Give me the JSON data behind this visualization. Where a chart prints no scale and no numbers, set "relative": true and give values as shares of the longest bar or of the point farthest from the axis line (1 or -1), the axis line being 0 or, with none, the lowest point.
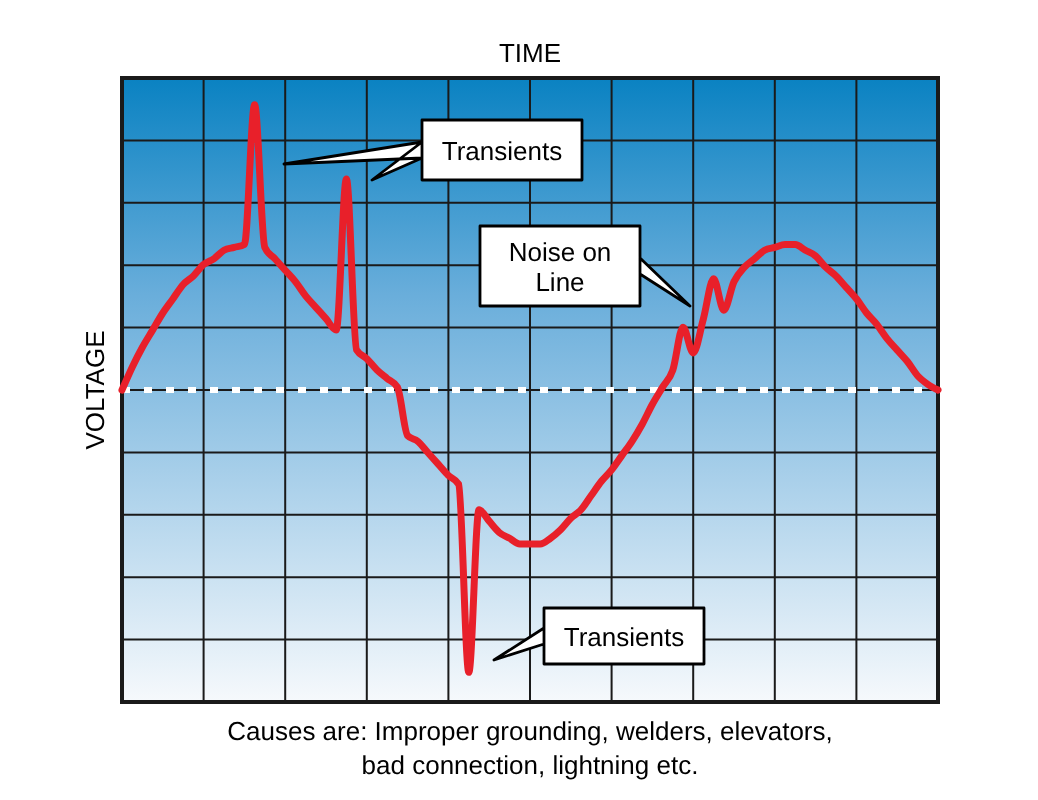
{
  "chart_data": {
    "type": "line",
    "xlabel": "TIME",
    "ylabel": "VOLTAGE",
    "relative": true,
    "grid": true,
    "marker": "none",
    "line_style": "solid",
    "categories": [
      null,
      null,
      null,
      null,
      null,
      null,
      null,
      null,
      null,
      null,
      null,
      null,
      null,
      null,
      null,
      null,
      null,
      null,
      null,
      null,
      null,
      null,
      null,
      null,
      null,
      null,
      null,
      null,
      null,
      null,
      null,
      null,
      null,
      null,
      null,
      null,
      null,
      null,
      null,
      null,
      null,
      null,
      null,
      null,
      null,
      null,
      null,
      null,
      null,
      null,
      null,
      null,
      null,
      null,
      null,
      null,
      null,
      null,
      null,
      null,
      null,
      null,
      null,
      null,
      null,
      null,
      null,
      null,
      null,
      null,
      null,
      null,
      null,
      null,
      null,
      null,
      null,
      null,
      null,
      null,
      null
    ],
    "series": [
      {
        "color": "#e8202a",
        "values": [
          0,
          0.08,
          0.15,
          0.21,
          0.27,
          0.32,
          0.37,
          0.4,
          0.44,
          0.46,
          0.49,
          0.5,
          0.51,
          1,
          0.5,
          0.46,
          0.42,
          0.38,
          0.33,
          0.29,
          0.25,
          0.21,
          0.74,
          0.14,
          0.11,
          0.07,
          0.04,
          0.01,
          -0.16,
          -0.18,
          -0.22,
          -0.26,
          -0.3,
          -0.33,
          -0.99,
          -0.42,
          -0.46,
          -0.5,
          -0.52,
          -0.54,
          -0.54,
          -0.54,
          -0.52,
          -0.49,
          -0.45,
          -0.42,
          -0.37,
          -0.32,
          -0.28,
          -0.23,
          -0.18,
          -0.12,
          -0.05,
          0.01,
          0.07,
          0.22,
          0.13,
          0.25,
          0.39,
          0.28,
          0.38,
          0.43,
          0.46,
          0.49,
          0.5,
          0.51,
          0.51,
          0.49,
          0.47,
          0.43,
          0.4,
          0.36,
          0.32,
          0.27,
          0.23,
          0.18,
          0.14,
          0.1,
          0.05,
          0.02,
          0
        ]
      }
    ],
    "ref_lines": [
      {
        "axis": "y",
        "value": 0,
        "color": "#ffffff",
        "line_style": "dotted"
      }
    ],
    "annotations": [
      "Transients",
      "Noise on Line",
      "Transients",
      "Causes are: Improper grounding, welders, elevators, bad connection, lightning etc."
    ]
  }
}
